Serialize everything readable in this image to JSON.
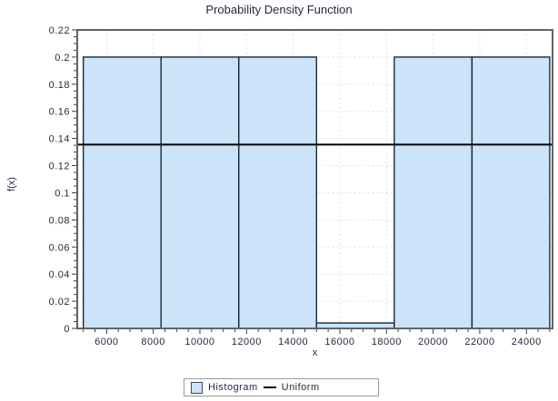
{
  "chart_data": {
    "type": "bar",
    "subtype": "histogram-with-uniform-line",
    "title": "Probability Density Function",
    "xlabel": "x",
    "ylabel": "f(x)",
    "x_range": [
      4740,
      25120
    ],
    "y_range": [
      0,
      0.22
    ],
    "grid": true,
    "x_ticks": [
      {
        "value": 6000,
        "label": "6000"
      },
      {
        "value": 8000,
        "label": "8000"
      },
      {
        "value": 10000,
        "label": "10000"
      },
      {
        "value": 12000,
        "label": "12000"
      },
      {
        "value": 14000,
        "label": "14000"
      },
      {
        "value": 16000,
        "label": "16000"
      },
      {
        "value": 18000,
        "label": "18000"
      },
      {
        "value": 20000,
        "label": "20000"
      },
      {
        "value": 22000,
        "label": "22000"
      },
      {
        "value": 24000,
        "label": "24000"
      }
    ],
    "x_minor_tick_step": 500,
    "y_ticks": [
      {
        "value": 0,
        "label": "0"
      },
      {
        "value": 0.02,
        "label": "0.02"
      },
      {
        "value": 0.04,
        "label": "0.04"
      },
      {
        "value": 0.06,
        "label": "0.06"
      },
      {
        "value": 0.08,
        "label": "0.08"
      },
      {
        "value": 0.1,
        "label": "0.1"
      },
      {
        "value": 0.12,
        "label": "0.12"
      },
      {
        "value": 0.14,
        "label": "0.14"
      },
      {
        "value": 0.16,
        "label": "0.16"
      },
      {
        "value": 0.18,
        "label": "0.18"
      },
      {
        "value": 0.2,
        "label": "0.2"
      },
      {
        "value": 0.22,
        "label": "0.22"
      }
    ],
    "y_minor_tick_step": 0.005,
    "bin_edges": [
      5000,
      8333.33,
      11666.67,
      15000,
      18333.33,
      21666.67,
      25000
    ],
    "bin_heights": [
      0.2,
      0.2,
      0.2,
      0.004,
      0.2,
      0.2
    ],
    "series": [
      {
        "name": "Histogram",
        "type": "bars"
      },
      {
        "name": "Uniform",
        "type": "hline",
        "value": 0.1355
      }
    ],
    "legend": {
      "position": "bottom-center",
      "items": [
        {
          "label": "Histogram",
          "swatch": "filled-square"
        },
        {
          "label": "Uniform",
          "swatch": "line"
        }
      ]
    },
    "colors": {
      "bar_fill": "#cbe4fa",
      "bar_stroke": "#1f2637",
      "uniform_line": "#000000",
      "frame": "#5f6368",
      "grid": "#e2e2e2",
      "tick": "#3c3c3c",
      "text": "#1f2a3c",
      "background": "#ffffff",
      "legend_border": "#9a9a9a"
    }
  }
}
